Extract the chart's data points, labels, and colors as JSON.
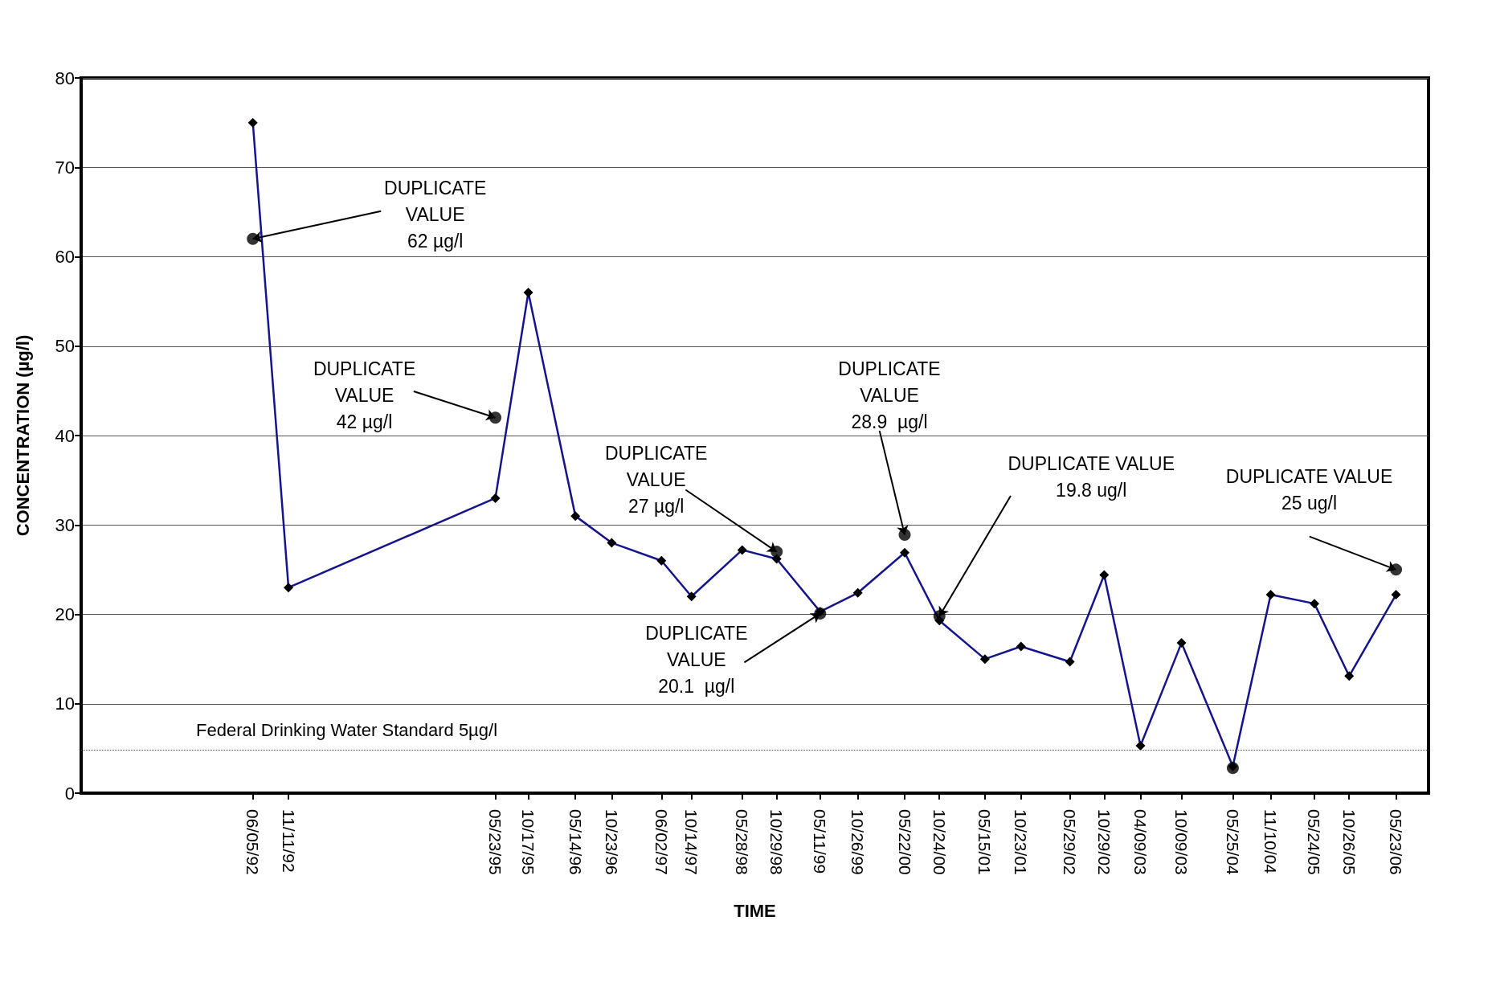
{
  "chart_data": {
    "type": "line",
    "xlabel": "TIME",
    "ylabel": "CONCENTRATION (µg/l)",
    "x": [
      "1992-06-05",
      "1992-11-11",
      "1995-05-23",
      "1995-10-17",
      "1996-05-14",
      "1996-10-23",
      "1997-06-02",
      "1997-10-14",
      "1998-05-28",
      "1998-10-29",
      "1999-05-11",
      "1999-10-26",
      "2000-05-22",
      "2000-10-24",
      "2001-05-15",
      "2001-10-23",
      "2002-05-29",
      "2002-10-29",
      "2003-04-09",
      "2003-10-09",
      "2004-05-25",
      "2004-11-10",
      "2005-05-24",
      "2005-10-26",
      "2006-05-23"
    ],
    "series": [
      {
        "type": "line",
        "color": "#14148c",
        "marker": "diamond",
        "line_style": "solid",
        "values": [
          75,
          23,
          33,
          56,
          31,
          28,
          26,
          22,
          27.2,
          26.2,
          20.3,
          22.4,
          26.9,
          19.3,
          15,
          16.4,
          14.7,
          24.4,
          5.3,
          16.8,
          3,
          22.2,
          21.2,
          13.1,
          22.2
        ]
      },
      {
        "type": "scatter",
        "color": "#000000",
        "marker": "circle",
        "x": [
          "1992-06-05",
          "1995-05-23",
          "1998-10-29",
          "1999-05-11",
          "2000-05-22",
          "2000-10-24",
          "2004-05-25",
          "2006-05-23"
        ],
        "values": [
          62,
          42,
          27,
          20.1,
          28.9,
          19.8,
          2.8,
          25
        ]
      }
    ],
    "xlim": [
      "1990-05-01",
      "2006-10-15"
    ],
    "xticks": [
      {
        "value": "1992-06-05",
        "label": "06/05/92"
      },
      {
        "value": "1992-11-11",
        "label": "11/11/92"
      },
      {
        "value": "1995-05-23",
        "label": "05/23/95"
      },
      {
        "value": "1995-10-17",
        "label": "10/17/95"
      },
      {
        "value": "1996-05-14",
        "label": "05/14/96"
      },
      {
        "value": "1996-10-23",
        "label": "10/23/96"
      },
      {
        "value": "1997-06-02",
        "label": "06/02/97"
      },
      {
        "value": "1997-10-14",
        "label": "10/14/97"
      },
      {
        "value": "1998-05-28",
        "label": "05/28/98"
      },
      {
        "value": "1998-10-29",
        "label": "10/29/98"
      },
      {
        "value": "1999-05-11",
        "label": "05/11/99"
      },
      {
        "value": "1999-10-26",
        "label": "10/26/99"
      },
      {
        "value": "2000-05-22",
        "label": "05/22/00"
      },
      {
        "value": "2000-10-24",
        "label": "10/24/00"
      },
      {
        "value": "2001-05-15",
        "label": "05/15/01"
      },
      {
        "value": "2001-10-23",
        "label": "10/23/01"
      },
      {
        "value": "2002-05-29",
        "label": "05/29/02"
      },
      {
        "value": "2002-10-29",
        "label": "10/29/02"
      },
      {
        "value": "2003-04-09",
        "label": "04/09/03"
      },
      {
        "value": "2003-10-09",
        "label": "10/09/03"
      },
      {
        "value": "2004-05-25",
        "label": "05/25/04"
      },
      {
        "value": "2004-11-10",
        "label": "11/10/04"
      },
      {
        "value": "2005-05-24",
        "label": "05/24/05"
      },
      {
        "value": "2005-10-26",
        "label": "10/26/05"
      },
      {
        "value": "2006-05-23",
        "label": "05/23/06"
      }
    ],
    "ylim": [
      0,
      80
    ],
    "yticks": [
      0,
      10,
      20,
      30,
      40,
      50,
      60,
      70,
      80
    ],
    "grid": "y",
    "ref_lines": [
      {
        "axis": "y",
        "value": 4.8,
        "label": "Federal Drinking Water Standard 5µg/l",
        "color": "#555555",
        "line_style": "dotted"
      }
    ],
    "annotations": [
      {
        "text": "DUPLICATE\nVALUE\n62 µg/l",
        "x": "1992-06-05",
        "y": 62
      },
      {
        "text": "DUPLICATE\nVALUE\n42 µg/l",
        "x": "1995-05-23",
        "y": 42
      },
      {
        "text": "DUPLICATE\nVALUE\n27 µg/l",
        "x": "1998-10-29",
        "y": 27
      },
      {
        "text": "DUPLICATE\nVALUE\n20.1  µg/l",
        "x": "1999-05-11",
        "y": 20.1
      },
      {
        "text": "DUPLICATE\nVALUE\n28.9  µg/l",
        "x": "2000-05-22",
        "y": 28.9
      },
      {
        "text": "DUPLICATE VALUE\n19.8 ug/l",
        "x": "2000-10-24",
        "y": 19.8
      },
      {
        "text": "DUPLICATE VALUE\n25 ug/l",
        "x": "2006-05-23",
        "y": 25
      }
    ]
  }
}
